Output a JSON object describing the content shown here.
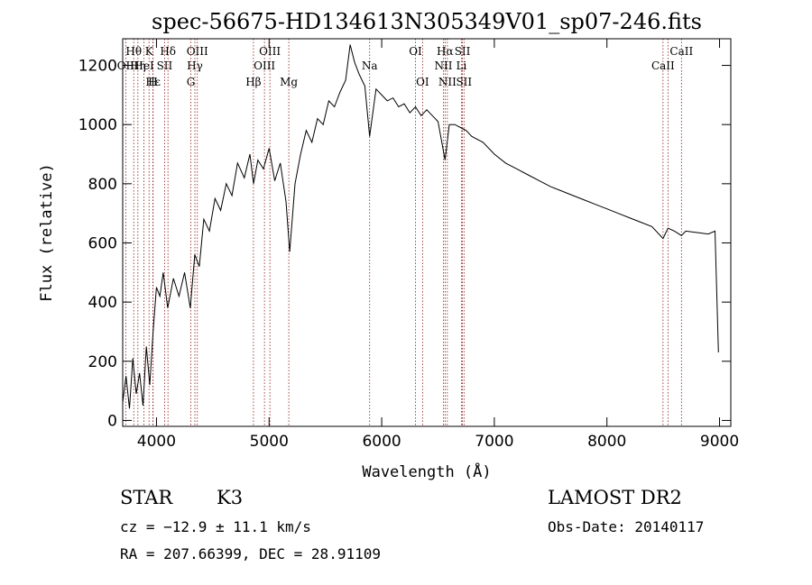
{
  "chart_data": {
    "type": "line",
    "title": "spec-56675-HD134613N305349V01_sp07-246.fits",
    "xlabel": "Wavelength (Å)",
    "ylabel": "Flux (relative)",
    "xlim": [
      3700,
      9100
    ],
    "ylim": [
      -20,
      1290
    ],
    "xticks": [
      4000,
      5000,
      6000,
      7000,
      8000,
      9000
    ],
    "yticks": [
      0,
      200,
      400,
      600,
      800,
      1000,
      1200
    ],
    "grid": false,
    "series": [
      {
        "x": [
          3700,
          3730,
          3760,
          3790,
          3820,
          3850,
          3880,
          3910,
          3940,
          3970,
          4000,
          4030,
          4060,
          4100,
          4150,
          4200,
          4250,
          4300,
          4340,
          4380,
          4420,
          4470,
          4520,
          4570,
          4620,
          4670,
          4720,
          4780,
          4830,
          4862,
          4900,
          4950,
          5000,
          5050,
          5100,
          5150,
          5183,
          5230,
          5280,
          5330,
          5380,
          5430,
          5480,
          5530,
          5580,
          5630,
          5680,
          5720,
          5760,
          5800,
          5850,
          5893,
          5950,
          6000,
          6050,
          6100,
          6150,
          6200,
          6250,
          6300,
          6350,
          6400,
          6450,
          6500,
          6563,
          6600,
          6650,
          6700,
          6750,
          6800,
          6900,
          7000,
          7100,
          7200,
          7300,
          7400,
          7500,
          7600,
          7700,
          7800,
          7900,
          8000,
          8100,
          8200,
          8300,
          8400,
          8498,
          8542,
          8600,
          8662,
          8700,
          8800,
          8900,
          8960,
          8990
        ],
        "y": [
          60,
          150,
          40,
          210,
          90,
          160,
          50,
          250,
          120,
          300,
          450,
          420,
          500,
          380,
          480,
          420,
          500,
          380,
          560,
          520,
          680,
          640,
          750,
          710,
          800,
          760,
          870,
          820,
          900,
          800,
          880,
          850,
          920,
          810,
          870,
          740,
          570,
          800,
          900,
          980,
          940,
          1020,
          1000,
          1080,
          1060,
          1110,
          1150,
          1270,
          1210,
          1170,
          1130,
          960,
          1120,
          1100,
          1080,
          1090,
          1060,
          1070,
          1040,
          1060,
          1030,
          1050,
          1030,
          1010,
          880,
          1000,
          1000,
          990,
          980,
          960,
          940,
          900,
          870,
          850,
          830,
          810,
          790,
          775,
          760,
          745,
          730,
          715,
          700,
          685,
          670,
          655,
          615,
          650,
          640,
          625,
          640,
          635,
          630,
          640,
          230
        ]
      }
    ],
    "lines": [
      {
        "label": "Hθ",
        "x": 3798,
        "row": 1
      },
      {
        "label": "OII",
        "x": 3727,
        "row": 2
      },
      {
        "label": "Hη",
        "x": 3835,
        "row": 2
      },
      {
        "label": "HeI",
        "x": 3889,
        "row": 2
      },
      {
        "label": "Hε",
        "x": 3970,
        "row": 3
      },
      {
        "label": "K",
        "x": 3934,
        "row": 1
      },
      {
        "label": "H",
        "x": 3968,
        "row": 3
      },
      {
        "label": "Hδ",
        "x": 4102,
        "row": 1
      },
      {
        "label": "SII",
        "x": 4072,
        "row": 2
      },
      {
        "label": "OIII",
        "x": 4363,
        "row": 1
      },
      {
        "label": "Hγ",
        "x": 4341,
        "row": 2
      },
      {
        "label": "G",
        "x": 4305,
        "row": 3
      },
      {
        "label": "Hβ",
        "x": 4861,
        "row": 3
      },
      {
        "label": "OIII",
        "x": 5007,
        "row": 1
      },
      {
        "label": "OIII",
        "x": 4959,
        "row": 2
      },
      {
        "label": "Mg",
        "x": 5175,
        "row": 3
      },
      {
        "label": "Na",
        "x": 5893,
        "row": 2
      },
      {
        "label": "OI",
        "x": 6300,
        "row": 1
      },
      {
        "label": "OI",
        "x": 6363,
        "row": 3
      },
      {
        "label": "Hα",
        "x": 6563,
        "row": 1
      },
      {
        "label": "NII",
        "x": 6548,
        "row": 2
      },
      {
        "label": "NII",
        "x": 6583,
        "row": 3
      },
      {
        "label": "SII",
        "x": 6717,
        "row": 1
      },
      {
        "label": "Li",
        "x": 6708,
        "row": 2
      },
      {
        "label": "SII",
        "x": 6731,
        "row": 3
      },
      {
        "label": "CaII",
        "x": 8662,
        "row": 1
      },
      {
        "label": "CaII",
        "x": 8498,
        "row": 2
      },
      {
        "label": "",
        "x": 8542,
        "row": 0
      }
    ]
  },
  "info": {
    "class": "STAR",
    "subclass": "K3",
    "survey": "LAMOST DR2",
    "cz": "cz = −12.9 ± 11.1 km/s",
    "obs_date": "Obs-Date: 20140117",
    "radec": "RA = 207.66399, DEC =  28.91109"
  },
  "colors": {
    "line": "#000000",
    "marker": "#8b1a1a"
  }
}
